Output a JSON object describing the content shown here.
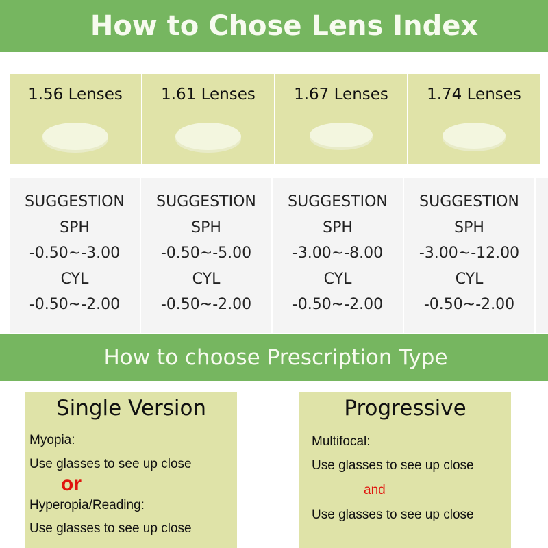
{
  "header": {
    "title": "How to Chose Lens Index"
  },
  "lenses": [
    {
      "label": "1.56 Lenses",
      "suggestion": "SUGGESTION",
      "sph_label": "SPH",
      "sph": "-0.50~-3.00",
      "cyl_label": "CYL",
      "cyl": "-0.50~-2.00"
    },
    {
      "label": "1.61 Lenses",
      "suggestion": "SUGGESTION",
      "sph_label": "SPH",
      "sph": "-0.50~-5.00",
      "cyl_label": "CYL",
      "cyl": "-0.50~-2.00"
    },
    {
      "label": "1.67 Lenses",
      "suggestion": "SUGGESTION",
      "sph_label": "SPH",
      "sph": "-3.00~-8.00",
      "cyl_label": "CYL",
      "cyl": "-0.50~-2.00"
    },
    {
      "label": "1.74 Lenses",
      "suggestion": "SUGGESTION",
      "sph_label": "SPH",
      "sph": "-3.00~-12.00",
      "cyl_label": "CYL",
      "cyl": "-0.50~-2.00"
    }
  ],
  "section2": {
    "title": "How to choose Prescription Type"
  },
  "single": {
    "title": "Single Version",
    "line1": "Myopia:",
    "line2": "Use glasses to see up close",
    "or": "or",
    "line3": "Hyperopia/Reading:",
    "line4": "Use glasses to see up close"
  },
  "progressive": {
    "title": "Progressive",
    "line1": "Multifocal:",
    "line2": "Use glasses to see up close",
    "and": "and",
    "line3": "Use glasses to see up close"
  },
  "colors": {
    "banner": "#76b660",
    "panel": "#dfe3a8",
    "accent_red": "#e0140d"
  }
}
